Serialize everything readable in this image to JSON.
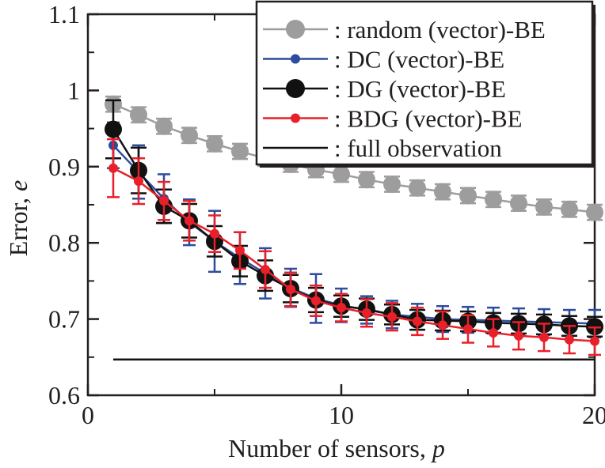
{
  "chart_data": {
    "type": "line",
    "xlabel_text": "Number of sensors, ",
    "xlabel_var": "p",
    "ylabel_text": "Error, ",
    "ylabel_var": "e",
    "xlim": [
      0,
      20
    ],
    "ylim": [
      0.6,
      1.1
    ],
    "x_ticks": [
      0,
      10,
      20
    ],
    "x_tick_labels": [
      "0",
      "10",
      "20"
    ],
    "y_ticks": [
      0.6,
      0.7,
      0.8,
      0.9,
      1.0,
      1.1
    ],
    "y_tick_labels": [
      "0.6",
      "0.7",
      "0.8",
      "0.9",
      "1",
      "1.1"
    ],
    "grid": false,
    "legend_position": "top-right",
    "x": [
      1,
      2,
      3,
      4,
      5,
      6,
      7,
      8,
      9,
      10,
      11,
      12,
      13,
      14,
      15,
      16,
      17,
      18,
      19,
      20
    ],
    "series": [
      {
        "name": ": random (vector)-BE",
        "color": "#9d9d9d",
        "marker": "large",
        "values": [
          0.982,
          0.968,
          0.953,
          0.941,
          0.93,
          0.92,
          0.911,
          0.903,
          0.896,
          0.89,
          0.883,
          0.877,
          0.872,
          0.867,
          0.862,
          0.857,
          0.852,
          0.847,
          0.844,
          0.84
        ],
        "errors": [
          0.01,
          0.01,
          0.01,
          0.01,
          0.01,
          0.01,
          0.01,
          0.01,
          0.01,
          0.01,
          0.01,
          0.01,
          0.01,
          0.01,
          0.01,
          0.01,
          0.01,
          0.01,
          0.01,
          0.01
        ]
      },
      {
        "name": ": DC (vector)-BE",
        "color": "#2c4c9f",
        "marker": "small",
        "values": [
          0.928,
          0.893,
          0.858,
          0.827,
          0.802,
          0.78,
          0.76,
          0.741,
          0.727,
          0.718,
          0.712,
          0.706,
          0.703,
          0.7,
          0.699,
          0.698,
          0.697,
          0.696,
          0.695,
          0.694
        ],
        "errors": [
          0.03,
          0.035,
          0.032,
          0.03,
          0.04,
          0.034,
          0.033,
          0.025,
          0.032,
          0.022,
          0.018,
          0.018,
          0.017,
          0.017,
          0.017,
          0.017,
          0.017,
          0.017,
          0.017,
          0.018
        ]
      },
      {
        "name": ": DG (vector)-BE",
        "color": "#111111",
        "marker": "large",
        "values": [
          0.949,
          0.895,
          0.848,
          0.829,
          0.802,
          0.776,
          0.757,
          0.74,
          0.725,
          0.717,
          0.713,
          0.706,
          0.699,
          0.698,
          0.697,
          0.695,
          0.694,
          0.693,
          0.691,
          0.69
        ],
        "errors": [
          0.038,
          0.03,
          0.022,
          0.022,
          0.02,
          0.02,
          0.02,
          0.018,
          0.016,
          0.014,
          0.014,
          0.013,
          0.013,
          0.013,
          0.013,
          0.013,
          0.013,
          0.013,
          0.013,
          0.013
        ]
      },
      {
        "name": ": BDG (vector)-BE",
        "color": "#e8202a",
        "marker": "small",
        "values": [
          0.898,
          0.881,
          0.855,
          0.829,
          0.812,
          0.79,
          0.765,
          0.739,
          0.724,
          0.715,
          0.708,
          0.703,
          0.697,
          0.692,
          0.687,
          0.682,
          0.678,
          0.676,
          0.673,
          0.671
        ],
        "errors": [
          0.038,
          0.03,
          0.025,
          0.026,
          0.024,
          0.024,
          0.024,
          0.022,
          0.02,
          0.018,
          0.018,
          0.018,
          0.018,
          0.018,
          0.018,
          0.018,
          0.018,
          0.018,
          0.018,
          0.018
        ]
      },
      {
        "name": ": full observation",
        "color": "#111111",
        "marker": "none",
        "type": "hline",
        "x_range": [
          1,
          20
        ],
        "value": 0.647
      }
    ]
  }
}
